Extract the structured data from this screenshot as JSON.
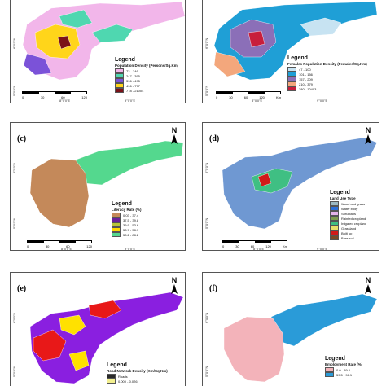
{
  "panels": {
    "a": {
      "label": "",
      "legend_title": "Legend",
      "legend_subtitle": "Population Density (Persons/Sq.Km)",
      "classes": [
        {
          "label": "73 - 246",
          "color": "#f2b6ea"
        },
        {
          "label": "247 - 395",
          "color": "#4fd7b0"
        },
        {
          "label": "396 - 495",
          "color": "#7b52d8"
        },
        {
          "label": "496 - 777",
          "color": "#ffd51a"
        },
        {
          "label": "778 - 21004",
          "color": "#7a1218"
        }
      ],
      "scale_ticks": [
        "0",
        "30",
        "60",
        "120"
      ],
      "scale_unit": "",
      "bottom_coords": [
        "8°0'0\"E",
        "9°0'0\"E"
      ],
      "side_coords": [
        "6°0'0\"N",
        "5°0'0\"N"
      ],
      "north": ""
    },
    "b": {
      "label": "",
      "legend_title": "Legend",
      "legend_subtitle": "Females Population Density (Females/Sq.Km)",
      "classes": [
        {
          "label": "47 - 100",
          "color": "#c7e3f2"
        },
        {
          "label": "101 - 156",
          "color": "#1f9fd6"
        },
        {
          "label": "157 - 209",
          "color": "#8b6fb8"
        },
        {
          "label": "210 - 379",
          "color": "#f3a77c"
        },
        {
          "label": "380 - 10403",
          "color": "#c81e3c"
        }
      ],
      "scale_ticks": [
        "0",
        "30",
        "60",
        "120"
      ],
      "scale_unit": "Km",
      "bottom_coords": [
        "8°0'0\"E",
        "9°0'0\"E"
      ],
      "side_coords": [
        "6°0'0\"N",
        "5°0'0\"N"
      ],
      "north": ""
    },
    "c": {
      "label": "(c)",
      "legend_title": "Legend",
      "legend_subtitle": "Literacy Rate (%)",
      "classes": [
        {
          "label": "0.03 - 37.4",
          "color": "#c4895a"
        },
        {
          "label": "37.5 - 39.8",
          "color": "#6a1f9a"
        },
        {
          "label": "39.9 - 53.6",
          "color": "#b8c33a"
        },
        {
          "label": "53.7 - 58.1",
          "color": "#ffd800"
        },
        {
          "label": "58.2 - 88.2",
          "color": "#54d88e"
        }
      ],
      "scale_ticks": [
        "0",
        "30",
        "60",
        "120"
      ],
      "scale_unit": "",
      "bottom_coords": [
        "8°0'0\"E",
        "9°0'0\"E"
      ],
      "side_coords": [
        "6°0'0\"N",
        "5°0'0\"N"
      ],
      "north": "N"
    },
    "d": {
      "label": "(d)",
      "legend_title": "Legend",
      "legend_subtitle": "Land Use Type",
      "classes": [
        {
          "label": "Wood and grass",
          "color": "#9cb9c2"
        },
        {
          "label": "Water body",
          "color": "#2b6fd8"
        },
        {
          "label": "Shrublans",
          "color": "#e3b3e8"
        },
        {
          "label": "Rainfed cropland",
          "color": "#7e9d4e"
        },
        {
          "label": "Irrigated cropland",
          "color": "#3fbf83"
        },
        {
          "label": "Grassland",
          "color": "#e8e06a"
        },
        {
          "label": "Built up",
          "color": "#d11a1a"
        },
        {
          "label": "Bare soil",
          "color": "#7a4b27"
        }
      ],
      "scale_ticks": [
        "0",
        "30",
        "60",
        "120"
      ],
      "scale_unit": "Km",
      "bottom_coords": [
        "8°0'0\"E",
        "9°0'0\"E"
      ],
      "side_coords": [
        "6°0'0\"N",
        "5°0'0\"N"
      ],
      "north": "N"
    },
    "e": {
      "label": "(e)",
      "legend_title": "Legend",
      "legend_subtitle": "Road Network Density (Km/Sq.Km)",
      "classes": [
        {
          "label": "Roads",
          "color": "#2a2a2a"
        },
        {
          "label": "0.000 - 0.026",
          "color": "#f3f08f"
        }
      ],
      "scale_ticks": [],
      "scale_unit": "",
      "bottom_coords": [],
      "side_coords": [
        "6°0'0\"N",
        "5°0'0\"N"
      ],
      "north": "N"
    },
    "f": {
      "label": "(f)",
      "legend_title": "Legend",
      "legend_subtitle": "Employment Rate (%)",
      "classes": [
        {
          "label": "0.0 - 59.4",
          "color": "#f3b3ba"
        },
        {
          "label": "59.5 - 98.1",
          "color": "#2a9bd8"
        }
      ],
      "scale_ticks": [],
      "scale_unit": "",
      "bottom_coords": [],
      "side_coords": [
        "6°0'0\"N",
        "5°0'0\"N"
      ],
      "north": "N"
    }
  },
  "map_fills": {
    "a": {
      "base": "#f2b6ea",
      "center": "#4fd7b0",
      "core": "#7a1218",
      "yellow": "#ffd51a",
      "purple": "#7b52d8"
    },
    "b": {
      "base": "#1f9fd6",
      "center": "#8b6fb8",
      "core": "#c81e3c",
      "orange": "#f3a77c",
      "light": "#c7e3f2"
    },
    "c": {
      "west": "#c4895a",
      "east": "#54d88e"
    },
    "d": {
      "base": "#6f98d2",
      "green": "#3fbf83",
      "red": "#d11a1a"
    },
    "e": {
      "base": "#8a1fe0",
      "red": "#e81818",
      "yellow": "#ffe100"
    },
    "f": {
      "west": "#f3b3ba",
      "east": "#2a9bd8"
    }
  }
}
